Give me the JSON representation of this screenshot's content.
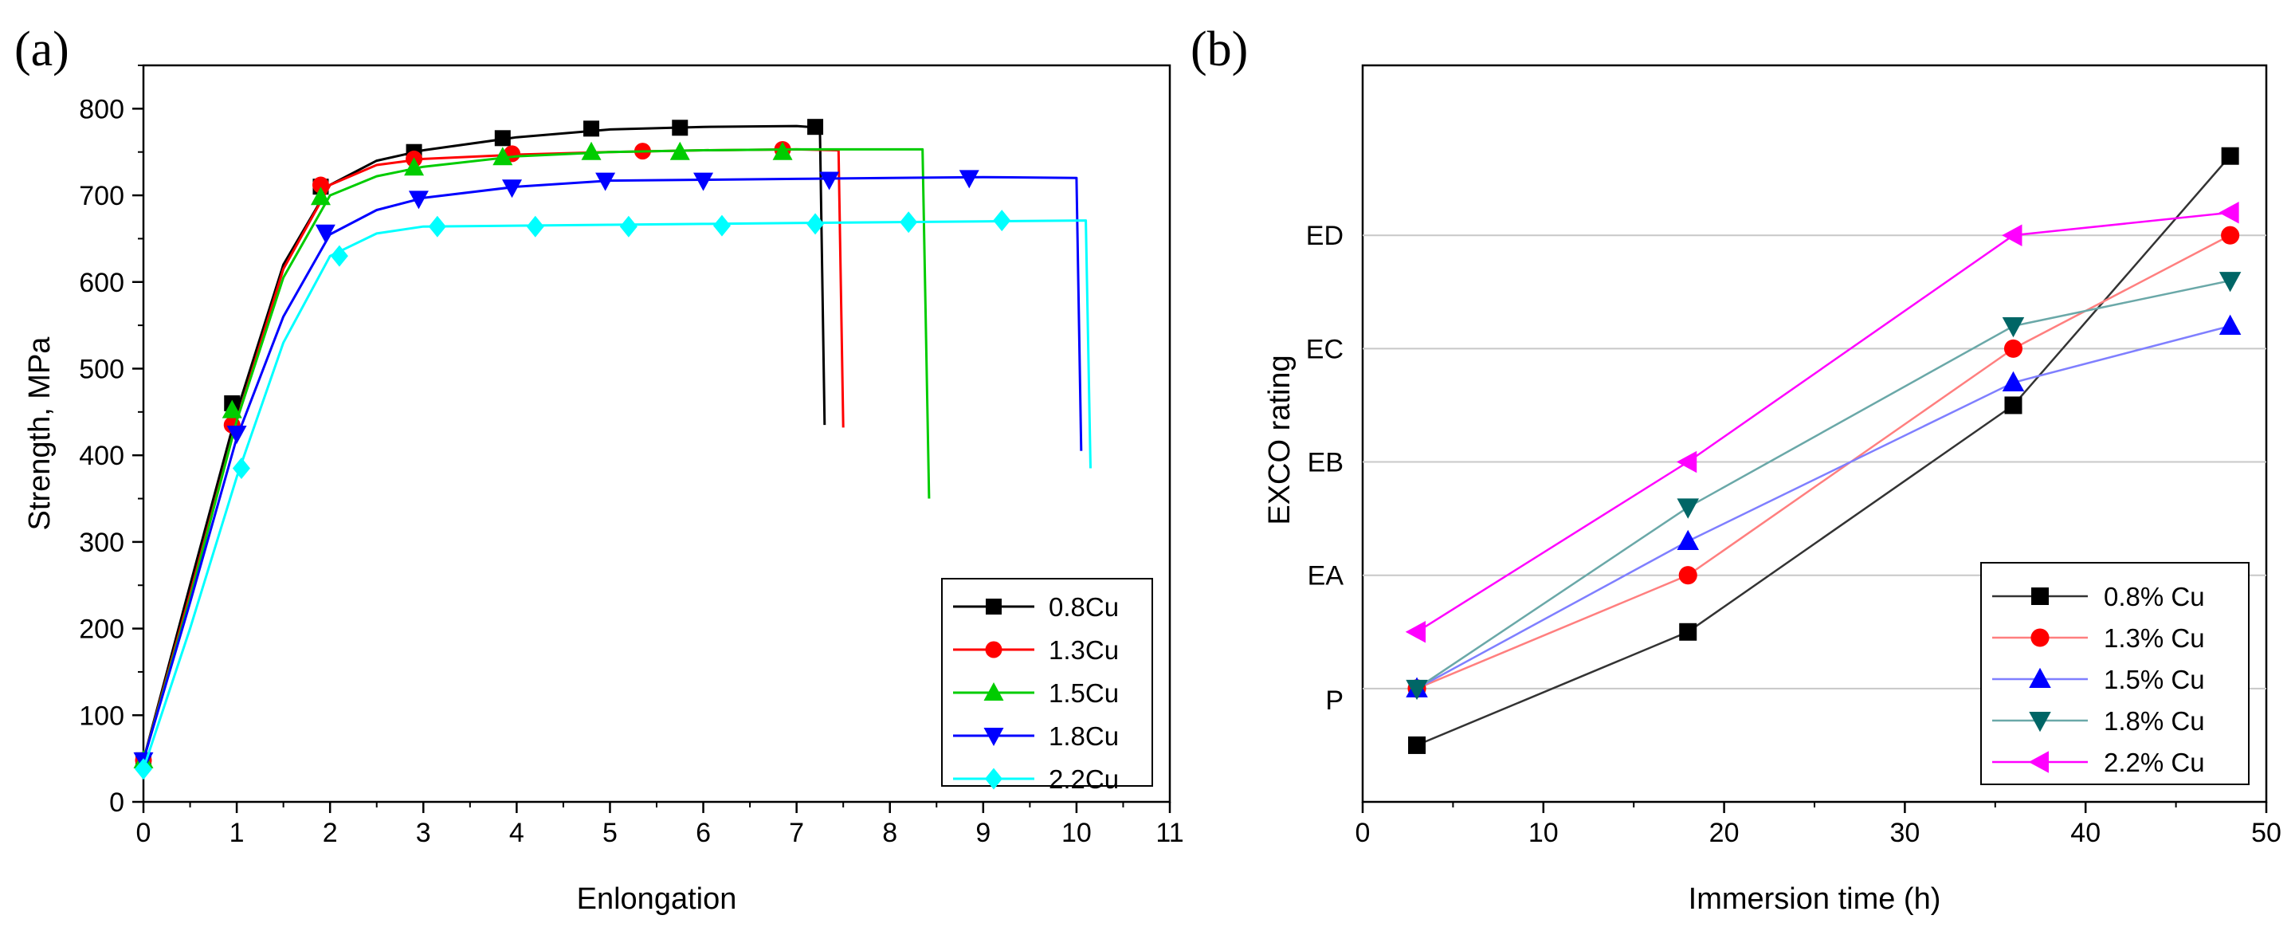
{
  "chart_data": [
    {
      "panel_label": "(a)",
      "type": "line",
      "xlabel": "Enlongation",
      "ylabel": "Strength, MPa",
      "xlim": [
        0,
        11
      ],
      "ylim": [
        0,
        850
      ],
      "x_ticks": [
        "0",
        "1",
        "2",
        "3",
        "4",
        "5",
        "6",
        "7",
        "8",
        "9",
        "10",
        "11"
      ],
      "y_ticks": [
        "0",
        "100",
        "200",
        "300",
        "400",
        "500",
        "600",
        "700",
        "800"
      ],
      "grid": false,
      "legend_position": "bottom-right",
      "series": [
        {
          "name": "0.8Cu",
          "color": "#000000",
          "marker": "square",
          "curve": [
            [
              0,
              48
            ],
            [
              0.5,
              250
            ],
            [
              1,
              450
            ],
            [
              1.5,
              620
            ],
            [
              2,
              712
            ],
            [
              2.5,
              740
            ],
            [
              3,
              752
            ],
            [
              4,
              767
            ],
            [
              5,
              776
            ],
            [
              6,
              779
            ],
            [
              7,
              780
            ],
            [
              7.25,
              778
            ],
            [
              7.3,
              435
            ]
          ],
          "markers": [
            [
              0,
              48
            ],
            [
              0.95,
              460
            ],
            [
              1.9,
              710
            ],
            [
              2.9,
              750
            ],
            [
              3.85,
              766
            ],
            [
              4.8,
              777
            ],
            [
              5.75,
              778
            ],
            [
              7.2,
              779
            ]
          ]
        },
        {
          "name": "1.3Cu",
          "color": "#ff0000",
          "marker": "circle",
          "curve": [
            [
              0,
              48
            ],
            [
              0.5,
              240
            ],
            [
              1,
              440
            ],
            [
              1.5,
              615
            ],
            [
              2,
              712
            ],
            [
              2.5,
              735
            ],
            [
              3,
              742
            ],
            [
              4,
              747
            ],
            [
              5,
              750
            ],
            [
              6,
              752
            ],
            [
              7,
              753
            ],
            [
              7.45,
              752
            ],
            [
              7.5,
              432
            ]
          ],
          "markers": [
            [
              0,
              48
            ],
            [
              0.95,
              435
            ],
            [
              1.9,
              712
            ],
            [
              2.9,
              742
            ],
            [
              3.95,
              748
            ],
            [
              5.35,
              751
            ],
            [
              6.85,
              753
            ]
          ]
        },
        {
          "name": "1.5Cu",
          "color": "#00cc00",
          "marker": "triangle-up",
          "curve": [
            [
              0,
              48
            ],
            [
              0.5,
              235
            ],
            [
              1,
              440
            ],
            [
              1.5,
              605
            ],
            [
              2,
              700
            ],
            [
              2.5,
              722
            ],
            [
              3,
              733
            ],
            [
              4,
              745
            ],
            [
              5,
              750
            ],
            [
              6,
              752
            ],
            [
              7,
              753
            ],
            [
              8.35,
              753
            ],
            [
              8.42,
              350
            ]
          ],
          "markers": [
            [
              0,
              48
            ],
            [
              0.95,
              452
            ],
            [
              1.9,
              698
            ],
            [
              2.9,
              732
            ],
            [
              3.85,
              744
            ],
            [
              4.8,
              750
            ],
            [
              5.75,
              750
            ],
            [
              6.85,
              750
            ]
          ]
        },
        {
          "name": "1.8Cu",
          "color": "#0000ff",
          "marker": "triangle-down",
          "curve": [
            [
              0,
              48
            ],
            [
              0.5,
              230
            ],
            [
              1,
              420
            ],
            [
              1.5,
              560
            ],
            [
              2,
              655
            ],
            [
              2.5,
              683
            ],
            [
              3,
              697
            ],
            [
              4,
              710
            ],
            [
              5,
              717
            ],
            [
              6,
              718
            ],
            [
              7,
              719
            ],
            [
              8,
              720
            ],
            [
              9,
              721
            ],
            [
              10.0,
              720
            ],
            [
              10.05,
              405
            ]
          ],
          "markers": [
            [
              0,
              48
            ],
            [
              1.0,
              425
            ],
            [
              1.95,
              657
            ],
            [
              2.95,
              696
            ],
            [
              3.95,
              709
            ],
            [
              4.95,
              717
            ],
            [
              6.0,
              717
            ],
            [
              7.35,
              718
            ],
            [
              8.85,
              720
            ]
          ]
        },
        {
          "name": "2.2Cu",
          "color": "#00ffff",
          "marker": "diamond",
          "curve": [
            [
              0,
              38
            ],
            [
              0.5,
              200
            ],
            [
              1,
              375
            ],
            [
              1.5,
              530
            ],
            [
              2,
              630
            ],
            [
              2.5,
              656
            ],
            [
              3,
              664
            ],
            [
              4,
              665
            ],
            [
              5,
              666
            ],
            [
              6,
              667
            ],
            [
              7,
              668
            ],
            [
              8,
              669
            ],
            [
              9,
              670
            ],
            [
              10.1,
              671
            ],
            [
              10.15,
              385
            ]
          ],
          "markers": [
            [
              0,
              38
            ],
            [
              1.05,
              385
            ],
            [
              2.1,
              630
            ],
            [
              3.15,
              664
            ],
            [
              4.2,
              664
            ],
            [
              5.2,
              664
            ],
            [
              6.2,
              665
            ],
            [
              7.2,
              667
            ],
            [
              8.2,
              669
            ],
            [
              9.2,
              671
            ]
          ]
        }
      ]
    },
    {
      "panel_label": "(b)",
      "type": "line",
      "xlabel": "Immersion time (h)",
      "ylabel": "EXCO rating",
      "xlim": [
        0,
        50
      ],
      "ylim": [
        -1,
        5.5
      ],
      "x_ticks": [
        "0",
        "10",
        "20",
        "30",
        "40",
        "50"
      ],
      "y_categories": [
        "P",
        "EA",
        "EB",
        "EC",
        "ED"
      ],
      "y_category_values": [
        0,
        1,
        2,
        3,
        4
      ],
      "grid": true,
      "legend_position": "bottom-right",
      "series": [
        {
          "name": "0.8% Cu",
          "color": "#333333",
          "marker_color": "#000000",
          "marker": "square",
          "x": [
            3,
            18,
            36,
            48
          ],
          "y": [
            -0.5,
            0.5,
            2.5,
            4.7
          ]
        },
        {
          "name": "1.3% Cu",
          "color": "#ff7f7f",
          "marker_color": "#ff0000",
          "marker": "circle",
          "x": [
            3,
            18,
            36,
            48
          ],
          "y": [
            0,
            1,
            3,
            4
          ]
        },
        {
          "name": "1.5% Cu",
          "color": "#7f7fff",
          "marker_color": "#0000ff",
          "marker": "triangle-up",
          "x": [
            3,
            18,
            36,
            48
          ],
          "y": [
            0,
            1.3,
            2.7,
            3.2
          ]
        },
        {
          "name": "1.8% Cu",
          "color": "#6aa8a8",
          "marker_color": "#006666",
          "marker": "triangle-down",
          "x": [
            3,
            18,
            36,
            48
          ],
          "y": [
            0,
            1.6,
            3.2,
            3.6
          ]
        },
        {
          "name": "2.2% Cu",
          "color": "#ff00ff",
          "marker_color": "#ff00ff",
          "marker": "triangle-left",
          "x": [
            3,
            18,
            36,
            48
          ],
          "y": [
            0.5,
            2,
            4,
            4.2
          ]
        }
      ]
    }
  ]
}
